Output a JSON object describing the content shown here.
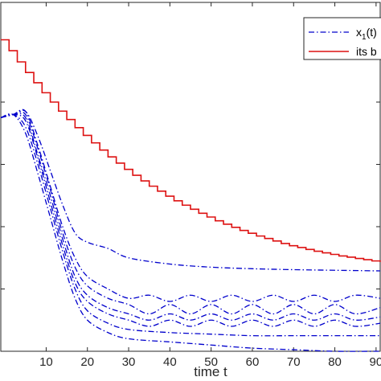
{
  "chart_data": {
    "type": "line",
    "title": "",
    "xlabel": "time t",
    "ylabel": "",
    "xlim": [
      -1,
      91
    ],
    "ylim": [
      0,
      1.12
    ],
    "grid": false,
    "legend_position": "top-right",
    "x_ticks": [
      "10",
      "20",
      "30",
      "40",
      "50",
      "60",
      "70",
      "80",
      "90"
    ],
    "legend": [
      {
        "text": "x",
        "sub": "1",
        "suffix": "(t)",
        "style": "dash-dot",
        "color": "#0000cc"
      },
      {
        "text": "its b",
        "style": "solid",
        "color": "#dd1111"
      }
    ],
    "colors": {
      "trajectories": "#0000cc",
      "bound": "#dd1111",
      "axes": "#262626"
    },
    "series": [
      {
        "name": "its b",
        "style": "solid",
        "step_width": 2,
        "x": [
          -1,
          1,
          3,
          5,
          7,
          9,
          11,
          13,
          15,
          17,
          19,
          21,
          23,
          25,
          27,
          29,
          31,
          33,
          35,
          37,
          39,
          41,
          43,
          45,
          47,
          49,
          51,
          53,
          55,
          57,
          59,
          61,
          63,
          65,
          67,
          69,
          71,
          73,
          75,
          77,
          79,
          81,
          83,
          85,
          87,
          89,
          91
        ],
        "y": [
          1.0,
          0.965,
          0.929,
          0.895,
          0.862,
          0.83,
          0.8,
          0.771,
          0.744,
          0.718,
          0.693,
          0.669,
          0.646,
          0.624,
          0.604,
          0.584,
          0.565,
          0.547,
          0.53,
          0.514,
          0.498,
          0.483,
          0.469,
          0.456,
          0.443,
          0.431,
          0.419,
          0.408,
          0.398,
          0.388,
          0.379,
          0.37,
          0.362,
          0.354,
          0.346,
          0.339,
          0.333,
          0.327,
          0.321,
          0.316,
          0.311,
          0.306,
          0.302,
          0.298,
          0.294,
          0.29,
          0.287
        ]
      },
      {
        "name": "",
        "style": "dash-dot",
        "x": [
          -1,
          2,
          5,
          8,
          11,
          14,
          17,
          20,
          25,
          30,
          40,
          50,
          60,
          70,
          80,
          91
        ],
        "y": [
          0.75,
          0.76,
          0.77,
          0.69,
          0.58,
          0.47,
          0.38,
          0.35,
          0.33,
          0.3,
          0.28,
          0.27,
          0.265,
          0.262,
          0.26,
          0.258
        ]
      },
      {
        "name": "",
        "style": "dash-dot",
        "x": [
          -1,
          2,
          5,
          8,
          11,
          14,
          17,
          20,
          25,
          30,
          35,
          40,
          45,
          50,
          55,
          60,
          65,
          70,
          75,
          80,
          85,
          91
        ],
        "y": [
          0.75,
          0.76,
          0.77,
          0.66,
          0.53,
          0.4,
          0.3,
          0.24,
          0.2,
          0.17,
          0.18,
          0.16,
          0.18,
          0.16,
          0.18,
          0.16,
          0.18,
          0.16,
          0.18,
          0.16,
          0.18,
          0.17
        ]
      },
      {
        "name": "",
        "style": "dash-dot",
        "x": [
          -1,
          2,
          5,
          8,
          11,
          14,
          17,
          20,
          25,
          30,
          35,
          40,
          45,
          50,
          55,
          60,
          65,
          70,
          75,
          80,
          85,
          91
        ],
        "y": [
          0.75,
          0.76,
          0.76,
          0.65,
          0.52,
          0.38,
          0.27,
          0.21,
          0.17,
          0.15,
          0.12,
          0.15,
          0.12,
          0.15,
          0.12,
          0.15,
          0.12,
          0.15,
          0.12,
          0.15,
          0.12,
          0.14
        ]
      },
      {
        "name": "",
        "style": "dash-dot",
        "x": [
          -1,
          2,
          5,
          8,
          11,
          14,
          17,
          20,
          25,
          30,
          35,
          40,
          45,
          50,
          55,
          60,
          65,
          70,
          75,
          80,
          85,
          91
        ],
        "y": [
          0.75,
          0.76,
          0.75,
          0.63,
          0.5,
          0.36,
          0.24,
          0.18,
          0.14,
          0.12,
          0.1,
          0.12,
          0.1,
          0.12,
          0.1,
          0.12,
          0.1,
          0.12,
          0.1,
          0.12,
          0.1,
          0.11
        ]
      },
      {
        "name": "",
        "style": "dash-dot",
        "x": [
          -1,
          2,
          5,
          8,
          11,
          14,
          17,
          20,
          25,
          30,
          35,
          40,
          45,
          50,
          55,
          60,
          65,
          70,
          75,
          80,
          85,
          91
        ],
        "y": [
          0.75,
          0.76,
          0.74,
          0.62,
          0.48,
          0.34,
          0.22,
          0.16,
          0.12,
          0.1,
          0.08,
          0.1,
          0.08,
          0.1,
          0.08,
          0.1,
          0.08,
          0.1,
          0.08,
          0.1,
          0.08,
          0.09
        ]
      },
      {
        "name": "",
        "style": "dash-dot",
        "x": [
          -1,
          2,
          5,
          8,
          11,
          14,
          17,
          20,
          25,
          30,
          40,
          50,
          60,
          70,
          80,
          91
        ],
        "y": [
          0.75,
          0.76,
          0.72,
          0.6,
          0.46,
          0.32,
          0.2,
          0.13,
          0.09,
          0.07,
          0.06,
          0.055,
          0.05,
          0.05,
          0.05,
          0.05
        ]
      },
      {
        "name": "",
        "style": "dash-dot",
        "x": [
          -1,
          2,
          5,
          8,
          11,
          14,
          17,
          20,
          25,
          30,
          40,
          50,
          60,
          70,
          80,
          91
        ],
        "y": [
          0.75,
          0.76,
          0.7,
          0.57,
          0.43,
          0.29,
          0.17,
          0.1,
          0.06,
          0.04,
          0.03,
          0.02,
          0.01,
          0.005,
          0.0,
          0.0
        ]
      }
    ]
  }
}
